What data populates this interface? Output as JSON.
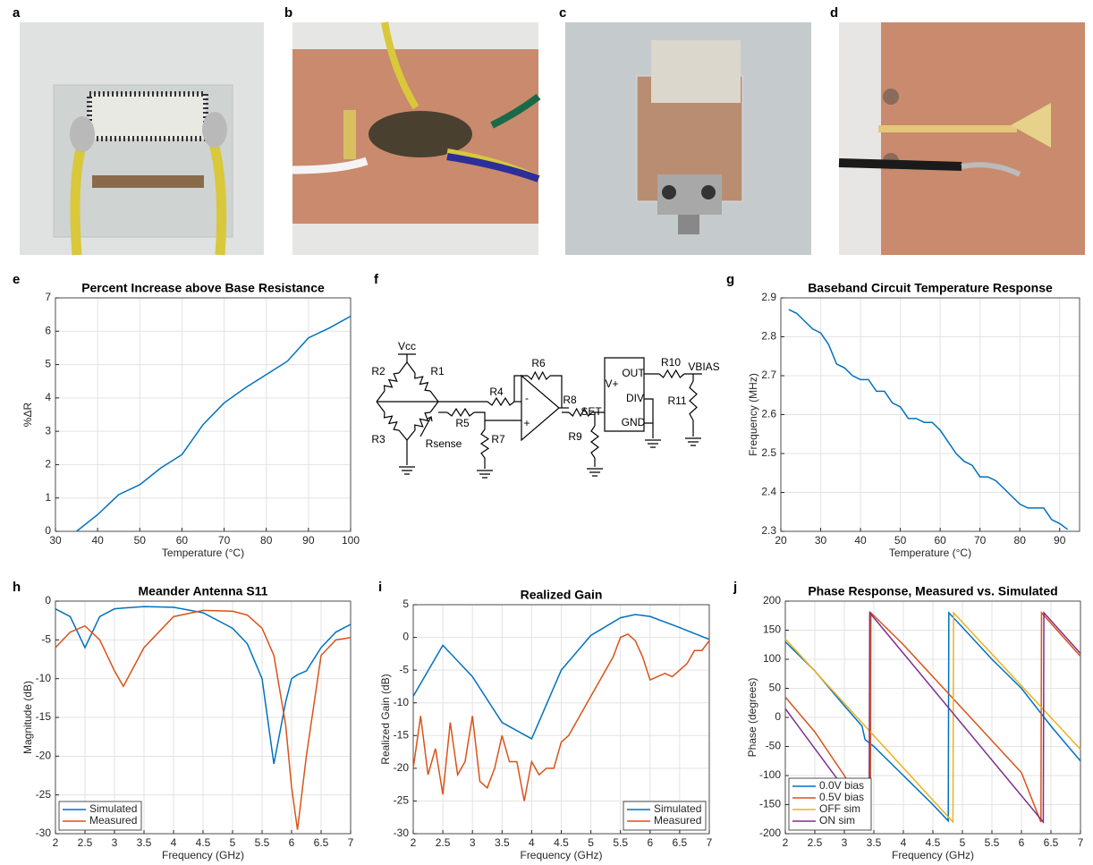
{
  "panel_labels": [
    "a",
    "b",
    "c",
    "d",
    "e",
    "f",
    "g",
    "h",
    "i",
    "j"
  ],
  "circuit": {
    "labels": [
      "Vcc",
      "R1",
      "R2",
      "R3",
      "Rsense",
      "R4",
      "R5",
      "R6",
      "R7",
      "R8",
      "R9",
      "-",
      "+",
      "V+",
      "OUT",
      "DIV",
      "SET",
      "GND",
      "R10",
      "R11",
      "VBIAS"
    ]
  },
  "chart_data": [
    {
      "type": "line",
      "title": "Percent Increase above Base Resistance",
      "xlabel": "Temperature (°C)",
      "ylabel": "%ΔR",
      "color": "#0072bd",
      "x": [
        35,
        40,
        45,
        50,
        55,
        60,
        65,
        70,
        75,
        80,
        85,
        90,
        95,
        100
      ],
      "values": [
        0,
        0.5,
        1.1,
        1.4,
        1.9,
        2.3,
        3.2,
        3.85,
        4.3,
        4.7,
        5.1,
        5.8,
        6.1,
        6.45
      ],
      "xlim": [
        30,
        100
      ],
      "ylim": [
        0,
        7
      ],
      "xticks": [
        30,
        40,
        50,
        60,
        70,
        80,
        90,
        100
      ],
      "yticks": [
        0,
        1,
        2,
        3,
        4,
        5,
        6,
        7
      ],
      "grid": true
    },
    {
      "type": "line",
      "title": "Baseband Circuit Temperature Response",
      "xlabel": "Temperature (°C)",
      "ylabel": "Frequency (MHz)",
      "color": "#0072bd",
      "x": [
        22,
        24,
        26,
        28,
        30,
        32,
        34,
        36,
        38,
        40,
        42,
        44,
        46,
        48,
        50,
        52,
        54,
        56,
        58,
        60,
        62,
        64,
        66,
        68,
        70,
        72,
        74,
        76,
        78,
        80,
        82,
        84,
        86,
        88,
        90,
        92
      ],
      "values": [
        2.87,
        2.86,
        2.84,
        2.82,
        2.81,
        2.78,
        2.73,
        2.72,
        2.7,
        2.69,
        2.69,
        2.66,
        2.66,
        2.63,
        2.62,
        2.59,
        2.59,
        2.58,
        2.58,
        2.56,
        2.53,
        2.5,
        2.48,
        2.47,
        2.44,
        2.44,
        2.43,
        2.41,
        2.39,
        2.37,
        2.36,
        2.36,
        2.36,
        2.33,
        2.32,
        2.305
      ],
      "xlim": [
        20,
        95
      ],
      "ylim": [
        2.3,
        2.9
      ],
      "xticks": [
        20,
        30,
        40,
        50,
        60,
        70,
        80,
        90
      ],
      "yticks": [
        2.3,
        2.4,
        2.5,
        2.6,
        2.7,
        2.8,
        2.9
      ],
      "grid": true
    },
    {
      "type": "line",
      "title": "Meander Antenna S11",
      "xlabel": "Frequency (GHz)",
      "ylabel": "Magnitude (dB)",
      "legend": "lower left",
      "x": [
        2,
        2.25,
        2.5,
        2.75,
        3,
        3.15,
        3.5,
        4,
        4.5,
        5,
        5.25,
        5.5,
        5.7,
        5.9,
        6,
        6.1,
        6.25,
        6.5,
        6.75,
        7
      ],
      "series": [
        {
          "name": "Simulated",
          "color": "#0072bd",
          "values": [
            -1,
            -2,
            -6,
            -2,
            -1,
            -0.9,
            -0.7,
            -0.8,
            -1.5,
            -3.5,
            -5.5,
            -10,
            -21,
            -13,
            -10,
            -9.5,
            -9,
            -6,
            -4,
            -3
          ]
        },
        {
          "name": "Measured",
          "color": "#d95319",
          "values": [
            -6,
            -4,
            -3.2,
            -5,
            -9,
            -11,
            -6,
            -2,
            -1.2,
            -1.3,
            -1.8,
            -3.5,
            -7,
            -16,
            -24,
            -29.5,
            -20,
            -7,
            -5,
            -4.7
          ]
        }
      ],
      "xlim": [
        2,
        7
      ],
      "ylim": [
        -30,
        0
      ],
      "xticks": [
        2,
        2.5,
        3,
        3.5,
        4,
        4.5,
        5,
        5.5,
        6,
        6.5,
        7
      ],
      "yticks": [
        -30,
        -25,
        -20,
        -15,
        -10,
        -5,
        0
      ],
      "grid": true
    },
    {
      "type": "line",
      "title": "Realized Gain",
      "xlabel": "Frequency (GHz)",
      "ylabel": "Realized Gain (dB)",
      "legend": "lower right",
      "series": [
        {
          "name": "Simulated",
          "color": "#0072bd",
          "x": [
            2,
            2.5,
            3,
            3.5,
            4,
            4.5,
            5,
            5.5,
            5.75,
            6,
            6.5,
            7
          ],
          "values": [
            -9,
            -1.2,
            -6,
            -13,
            -15.5,
            -5,
            0.3,
            3,
            3.5,
            3.2,
            1.5,
            -0.3
          ]
        },
        {
          "name": "Measured",
          "color": "#d95319",
          "x": [
            2,
            2.125,
            2.25,
            2.375,
            2.5,
            2.625,
            2.75,
            2.875,
            3,
            3.125,
            3.25,
            3.375,
            3.5,
            3.625,
            3.75,
            3.875,
            4,
            4.125,
            4.25,
            4.375,
            4.5,
            4.625,
            4.75,
            4.875,
            5,
            5.125,
            5.25,
            5.375,
            5.5,
            5.625,
            5.75,
            5.875,
            6,
            6.125,
            6.25,
            6.375,
            6.5,
            6.625,
            6.75,
            6.875,
            7
          ],
          "values": [
            -20,
            -12,
            -21,
            -17,
            -24,
            -13,
            -21,
            -19,
            -12,
            -22,
            -23,
            -20,
            -15,
            -19,
            -19,
            -25,
            -19,
            -21,
            -20,
            -20,
            -16,
            -15,
            -13,
            -11,
            -9,
            -7,
            -5,
            -3,
            0,
            0.5,
            -0.5,
            -3,
            -6.5,
            -6,
            -5.5,
            -6,
            -5,
            -4,
            -2,
            -2,
            -0.5
          ]
        }
      ],
      "xlim": [
        2,
        7
      ],
      "ylim": [
        -30,
        5
      ],
      "xticks": [
        2,
        2.5,
        3,
        3.5,
        4,
        4.5,
        5,
        5.5,
        6,
        6.5,
        7
      ],
      "yticks": [
        -30,
        -25,
        -20,
        -15,
        -10,
        -5,
        0,
        5
      ],
      "grid": true
    },
    {
      "type": "line",
      "title": "Phase Response, Measured vs. Simulated",
      "xlabel": "Frequency (GHz)",
      "ylabel": "Phase (degrees)",
      "legend": "lower left",
      "series": [
        {
          "name": "0.0V bias",
          "color": "#0072bd",
          "x": [
            2,
            2.5,
            3,
            3.3,
            3.35,
            3.5,
            4,
            4.5,
            4.76,
            4.77,
            5,
            5.5,
            6,
            6.5,
            7
          ],
          "values": [
            130,
            80,
            20,
            -15,
            -38,
            -50,
            -100,
            -150,
            -178,
            180,
            155,
            100,
            50,
            -15,
            -75
          ]
        },
        {
          "name": "0.5V bias",
          "color": "#d95319",
          "x": [
            2,
            2.5,
            3,
            3.44,
            3.45,
            4,
            5,
            6,
            6.33,
            6.34,
            7
          ],
          "values": [
            35,
            -25,
            -100,
            -180,
            180,
            125,
            15,
            -95,
            -180,
            180,
            105
          ]
        },
        {
          "name": "OFF sim",
          "color": "#edb120",
          "x": [
            2,
            4.84,
            4.85,
            7
          ],
          "values": [
            135,
            -180,
            180,
            -55
          ]
        },
        {
          "name": "ON sim",
          "color": "#7e2f8e",
          "x": [
            2,
            3.42,
            3.43,
            6.37,
            6.38,
            7
          ],
          "values": [
            15,
            -180,
            180,
            -180,
            180,
            110
          ]
        }
      ],
      "xlim": [
        2,
        7
      ],
      "ylim": [
        -200,
        200
      ],
      "xticks": [
        2,
        2.5,
        3,
        3.5,
        4,
        4.5,
        5,
        5.5,
        6,
        6.5,
        7
      ],
      "yticks": [
        -200,
        -150,
        -100,
        -50,
        0,
        50,
        100,
        150,
        200
      ],
      "grid": true
    }
  ]
}
